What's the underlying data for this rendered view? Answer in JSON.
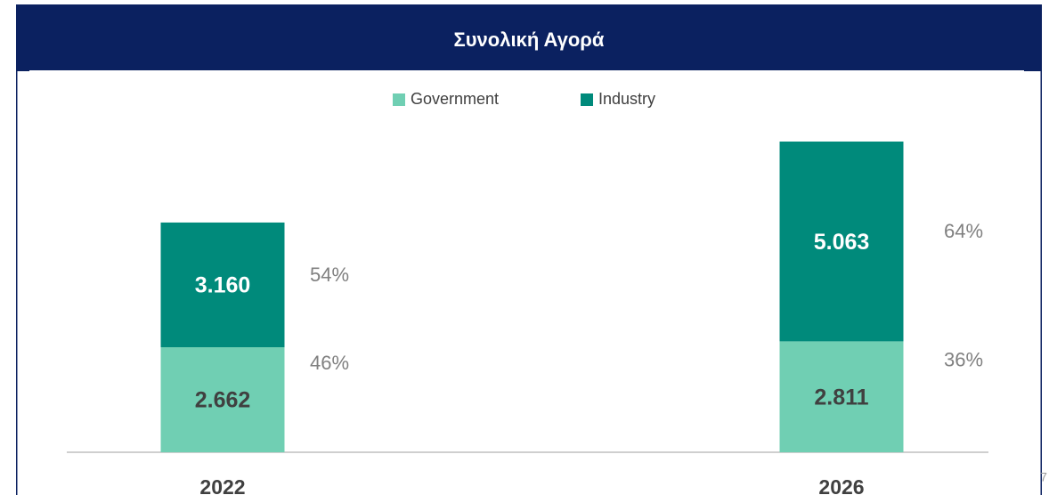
{
  "chart_data": {
    "type": "stacked_bar",
    "title": "Συνολική Αγορά",
    "categories": [
      "2022",
      "2026"
    ],
    "series": [
      {
        "name": "Government",
        "color": "#70cfb3",
        "values": [
          2662,
          2811
        ],
        "value_labels": [
          "2.662",
          "2.811"
        ],
        "share_labels": [
          "46%",
          "36%"
        ]
      },
      {
        "name": "Industry",
        "color": "#008a7b",
        "values": [
          3160,
          5063
        ],
        "value_labels": [
          "3.160",
          "5.063"
        ],
        "share_labels": [
          "54%",
          "64%"
        ]
      }
    ],
    "legend": "top",
    "page_number": "7"
  }
}
